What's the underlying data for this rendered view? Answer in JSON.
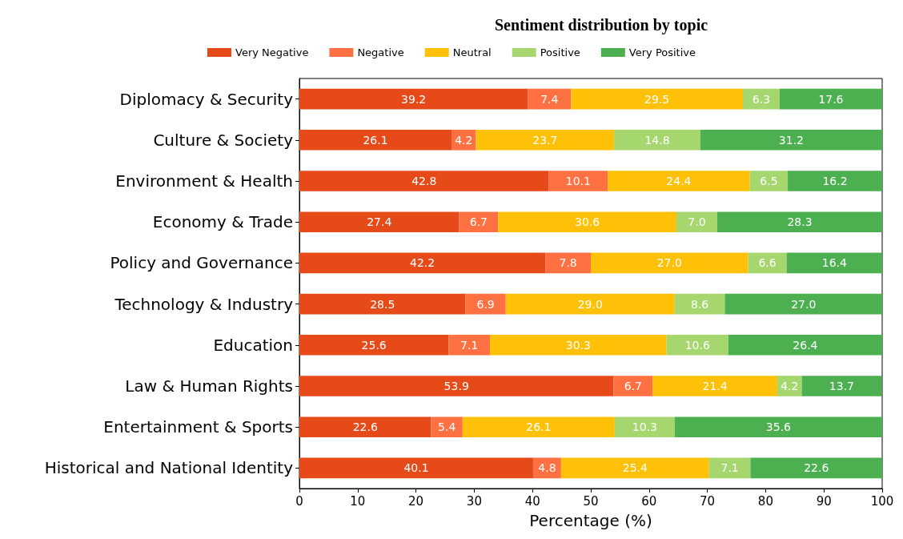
{
  "chart_data": {
    "type": "bar",
    "orientation": "horizontal",
    "stacked": true,
    "title": "Sentiment distribution by topic",
    "xlabel": "Percentage (%)",
    "categories": [
      "Diplomacy & Security",
      "Culture & Society",
      "Environment & Health",
      "Economy & Trade",
      "Policy and Governance",
      "Technology & Industry",
      "Education",
      "Law & Human Rights",
      "Entertainment & Sports",
      "Historical and National Identity"
    ],
    "series": [
      {
        "name": "Very Negative",
        "color": "#e64a19",
        "values": [
          39.2,
          26.1,
          42.8,
          27.4,
          42.2,
          28.5,
          25.6,
          53.9,
          22.6,
          40.1
        ],
        "value_labels": [
          "39.2",
          "26.1",
          "42.8",
          "27.4",
          "42.2",
          "28.5",
          "25.6",
          "53.9",
          "22.6",
          "40.1"
        ]
      },
      {
        "name": "Negative",
        "color": "#ff7043",
        "values": [
          7.4,
          4.2,
          10.1,
          6.7,
          7.8,
          6.9,
          7.1,
          6.7,
          5.4,
          4.8
        ],
        "value_labels": [
          "7.4",
          "4.2",
          "10.1",
          "6.7",
          "7.8",
          "6.9",
          "7.1",
          "6.7",
          "5.4",
          "4.8"
        ]
      },
      {
        "name": "Neutral",
        "color": "#ffc107",
        "values": [
          29.5,
          23.7,
          24.4,
          30.6,
          27.0,
          29.0,
          30.3,
          21.4,
          26.1,
          25.4
        ],
        "value_labels": [
          "29.5",
          "23.7",
          "24.4",
          "30.6",
          "27.0",
          "29.0",
          "30.3",
          "21.4",
          "26.1",
          "25.4"
        ]
      },
      {
        "name": "Positive",
        "color": "#a5d76e",
        "values": [
          6.3,
          14.8,
          6.5,
          7.0,
          6.6,
          8.6,
          10.6,
          4.2,
          10.3,
          7.1
        ],
        "value_labels": [
          "6.3",
          "14.8",
          "6.5",
          "7.0",
          "6.6",
          "8.6",
          "10.6",
          "4.2",
          "10.3",
          "7.1"
        ]
      },
      {
        "name": "Very Positive",
        "color": "#4caf50",
        "values": [
          17.6,
          31.2,
          16.2,
          28.3,
          16.4,
          27.0,
          26.4,
          13.7,
          35.6,
          22.6
        ],
        "value_labels": [
          "17.6",
          "31.2",
          "16.2",
          "28.3",
          "16.4",
          "27.0",
          "26.4",
          "13.7",
          "35.6",
          "22.6"
        ]
      }
    ],
    "xlim": [
      0,
      100
    ],
    "xticks": [
      0,
      10,
      20,
      30,
      40,
      50,
      60,
      70,
      80,
      90,
      100
    ],
    "legend": "top",
    "grid": false
  }
}
